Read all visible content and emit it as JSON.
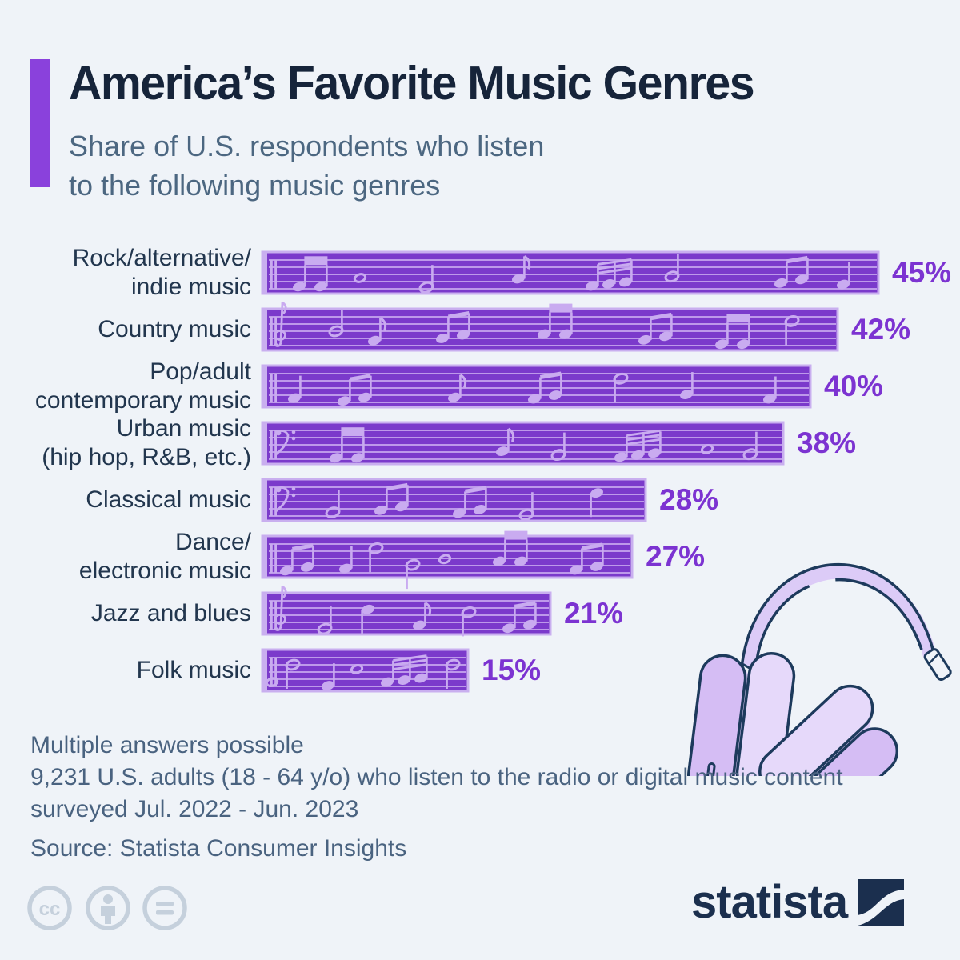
{
  "title": "America’s Favorite Music Genres",
  "subtitle_lines": [
    "Share of U.S. respondents who listen",
    "to the following music genres"
  ],
  "chart_data": {
    "type": "bar",
    "orientation": "horizontal",
    "title": "America’s Favorite Music Genres",
    "subtitle": "Share of U.S. respondents who listen to the following music genres",
    "categories": [
      "Rock/alternative/indie music",
      "Country music",
      "Pop/adult contemporary music",
      "Urban music (hip hop, R&B, etc.)",
      "Classical music",
      "Dance/electronic music",
      "Jazz and blues",
      "Folk music"
    ],
    "values": [
      45,
      42,
      40,
      38,
      28,
      27,
      21,
      15
    ],
    "value_labels": [
      "45%",
      "42%",
      "40%",
      "38%",
      "28%",
      "27%",
      "21%",
      "15%"
    ],
    "unit": "%",
    "xlim": [
      0,
      45
    ],
    "grid": false,
    "legend": false,
    "bar_color": "#7B3ACB"
  },
  "bars": [
    {
      "label_lines": [
        "Rock/alternative/",
        "indie music"
      ],
      "value": 45,
      "value_label": "45%",
      "notes": [
        [
          "blk2",
          46,
          3.7
        ],
        [
          "w",
          122,
          2.5
        ],
        [
          "h",
          205,
          3.8
        ],
        [
          "8",
          320,
          2.6
        ],
        [
          "b3",
          412,
          3.6
        ],
        [
          "h",
          512,
          2.3
        ],
        [
          "b2",
          648,
          3.2
        ],
        [
          "q",
          726,
          3.4
        ]
      ]
    },
    {
      "label_lines": [
        "Country music"
      ],
      "value": 42,
      "value_label": "42%",
      "notes": [
        [
          "treble",
          14,
          0
        ],
        [
          "h",
          92,
          2.0
        ],
        [
          "8",
          140,
          3.3
        ],
        [
          "b2",
          225,
          3.0
        ],
        [
          "blk2",
          352,
          2.4
        ],
        [
          "b2",
          478,
          3.2
        ],
        [
          "blk2",
          574,
          3.8
        ],
        [
          "h",
          662,
          0.6,
          "down"
        ]
      ]
    },
    {
      "label_lines": [
        "Pop/adult",
        "contemporary music"
      ],
      "value": 40,
      "value_label": "40%",
      "notes": [
        [
          "q",
          40,
          3.4
        ],
        [
          "b2",
          102,
          3.8
        ],
        [
          "8",
          240,
          3.3
        ],
        [
          "b2",
          340,
          3.5
        ],
        [
          "h",
          448,
          0.7,
          "down"
        ],
        [
          "q",
          530,
          2.9
        ],
        [
          "q",
          634,
          3.5
        ]
      ]
    },
    {
      "label_lines": [
        "Urban music",
        "(hip hop, R&B, etc.)"
      ],
      "value": 38,
      "value_label": "38%",
      "notes": [
        [
          "bass",
          14,
          0
        ],
        [
          "blk2",
          92,
          3.8
        ],
        [
          "8",
          300,
          2.9
        ],
        [
          "h",
          370,
          3.4
        ],
        [
          "b3",
          448,
          3.7
        ],
        [
          "w",
          556,
          2.6
        ],
        [
          "h",
          610,
          3.3
        ]
      ]
    },
    {
      "label_lines": [
        "Classical music"
      ],
      "value": 28,
      "value_label": "28%",
      "notes": [
        [
          "bass",
          14,
          0
        ],
        [
          "h",
          88,
          3.5
        ],
        [
          "b2",
          148,
          3.2
        ],
        [
          "b2",
          246,
          3.6
        ],
        [
          "h",
          330,
          3.8
        ],
        [
          "q",
          418,
          0.8,
          "down"
        ]
      ]
    },
    {
      "label_lines": [
        "Dance/",
        "electronic music"
      ],
      "value": 27,
      "value_label": "27%",
      "notes": [
        [
          "b2",
          30,
          3.7
        ],
        [
          "q",
          104,
          3.4
        ],
        [
          "h",
          142,
          0.6,
          "down"
        ],
        [
          "h",
          188,
          2.9,
          "down"
        ],
        [
          "w",
          228,
          2.1
        ],
        [
          "blk2",
          296,
          2.4
        ],
        [
          "b2",
          392,
          3.6
        ]
      ]
    },
    {
      "label_lines": [
        "Jazz and blues"
      ],
      "value": 21,
      "value_label": "21%",
      "notes": [
        [
          "treble",
          14,
          0
        ],
        [
          "h",
          78,
          3.9
        ],
        [
          "q",
          132,
          1.2,
          "down"
        ],
        [
          "8",
          196,
          3.4
        ],
        [
          "h",
          258,
          1.6,
          "down"
        ],
        [
          "b2",
          308,
          3.8
        ]
      ]
    },
    {
      "label_lines": [
        "Folk music"
      ],
      "value": 15,
      "value_label": "15%",
      "notes": [
        [
          "w",
          12,
          3.4
        ],
        [
          "h",
          38,
          1.0,
          "down"
        ],
        [
          "q",
          82,
          3.9
        ],
        [
          "w",
          118,
          1.6
        ],
        [
          "b3",
          156,
          3.4
        ],
        [
          "h",
          238,
          1.0
        ]
      ]
    }
  ],
  "footer": {
    "note1": "Multiple answers possible",
    "note2": "9,231 U.S. adults (18 - 64 y/o) who listen to the radio or digital music content",
    "note3": "surveyed Jul. 2022 - Jun. 2023",
    "source": "Source: Statista Consumer Insights"
  },
  "branding": {
    "logo_text": "statista"
  },
  "icons": [
    "cc-icon",
    "attribution-person-icon",
    "equals-no-derivatives-icon",
    "headphones-illustration",
    "statista-logo-mark"
  ],
  "colors": {
    "background": "#EFF3F8",
    "accent": "#8A41DC",
    "bar_fill": "#7B3ACB",
    "bar_border": "#C9AFEF",
    "note": "#C9ABF0",
    "staff": "#BD99EA",
    "value_text": "#7C33D1",
    "title_text": "#16243A",
    "subtitle_text": "#4C6781",
    "label_text": "#22364E",
    "footer_text": "#4A6380",
    "outline_navy": "#1D3A5C",
    "logo_navy": "#1B2F4E",
    "cc_gray": "#C5D0DC",
    "headphone_light": "#E6D9FA",
    "headphone_mid": "#D5BDF4"
  }
}
